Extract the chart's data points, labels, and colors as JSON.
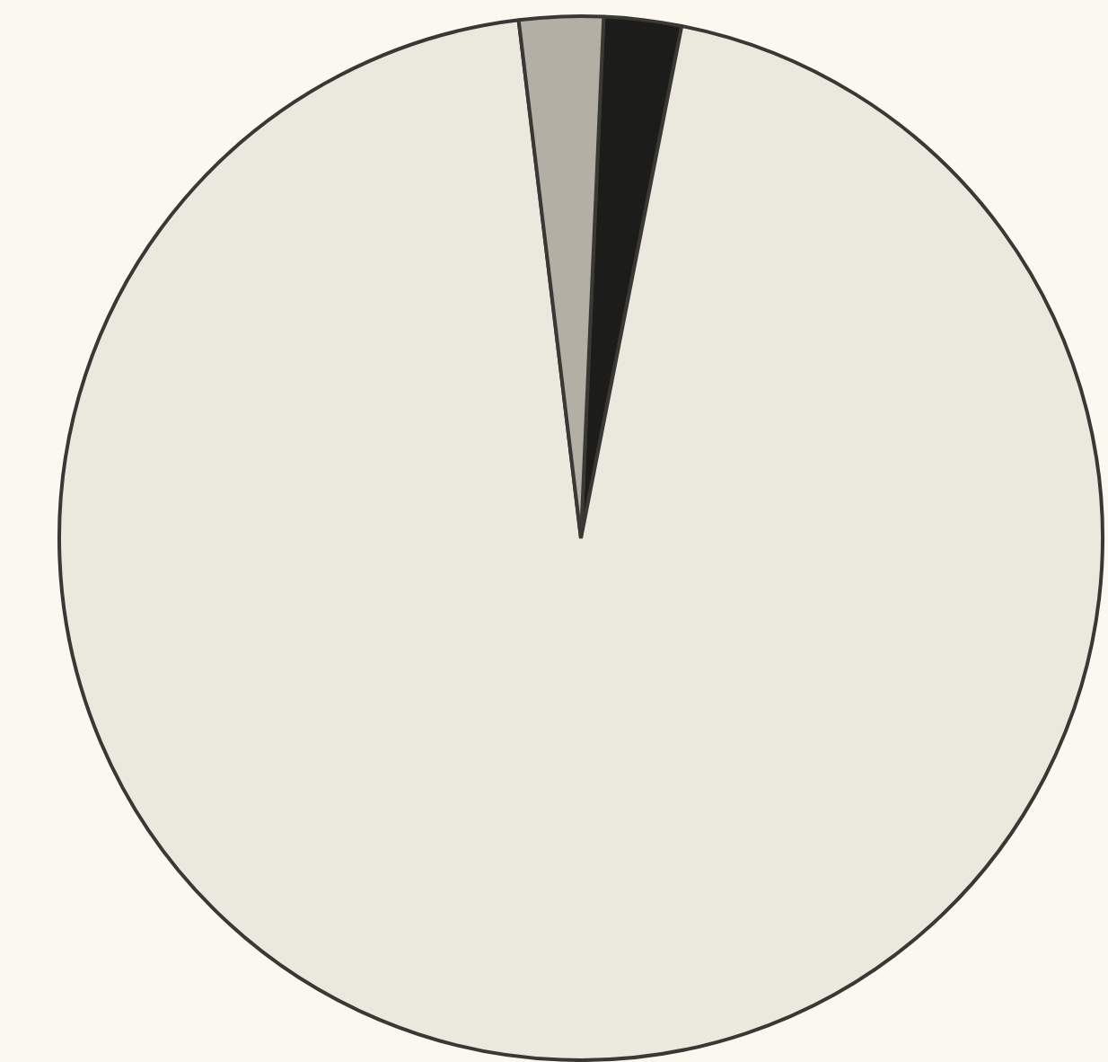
{
  "chart_data": {
    "type": "pie",
    "categories": [
      null,
      null,
      null
    ],
    "values": [
      2.4,
      95,
      2.6
    ],
    "colors": [
      "#1c1c1a",
      "#ebe8de",
      "#b3afa4"
    ],
    "legend": false
  }
}
